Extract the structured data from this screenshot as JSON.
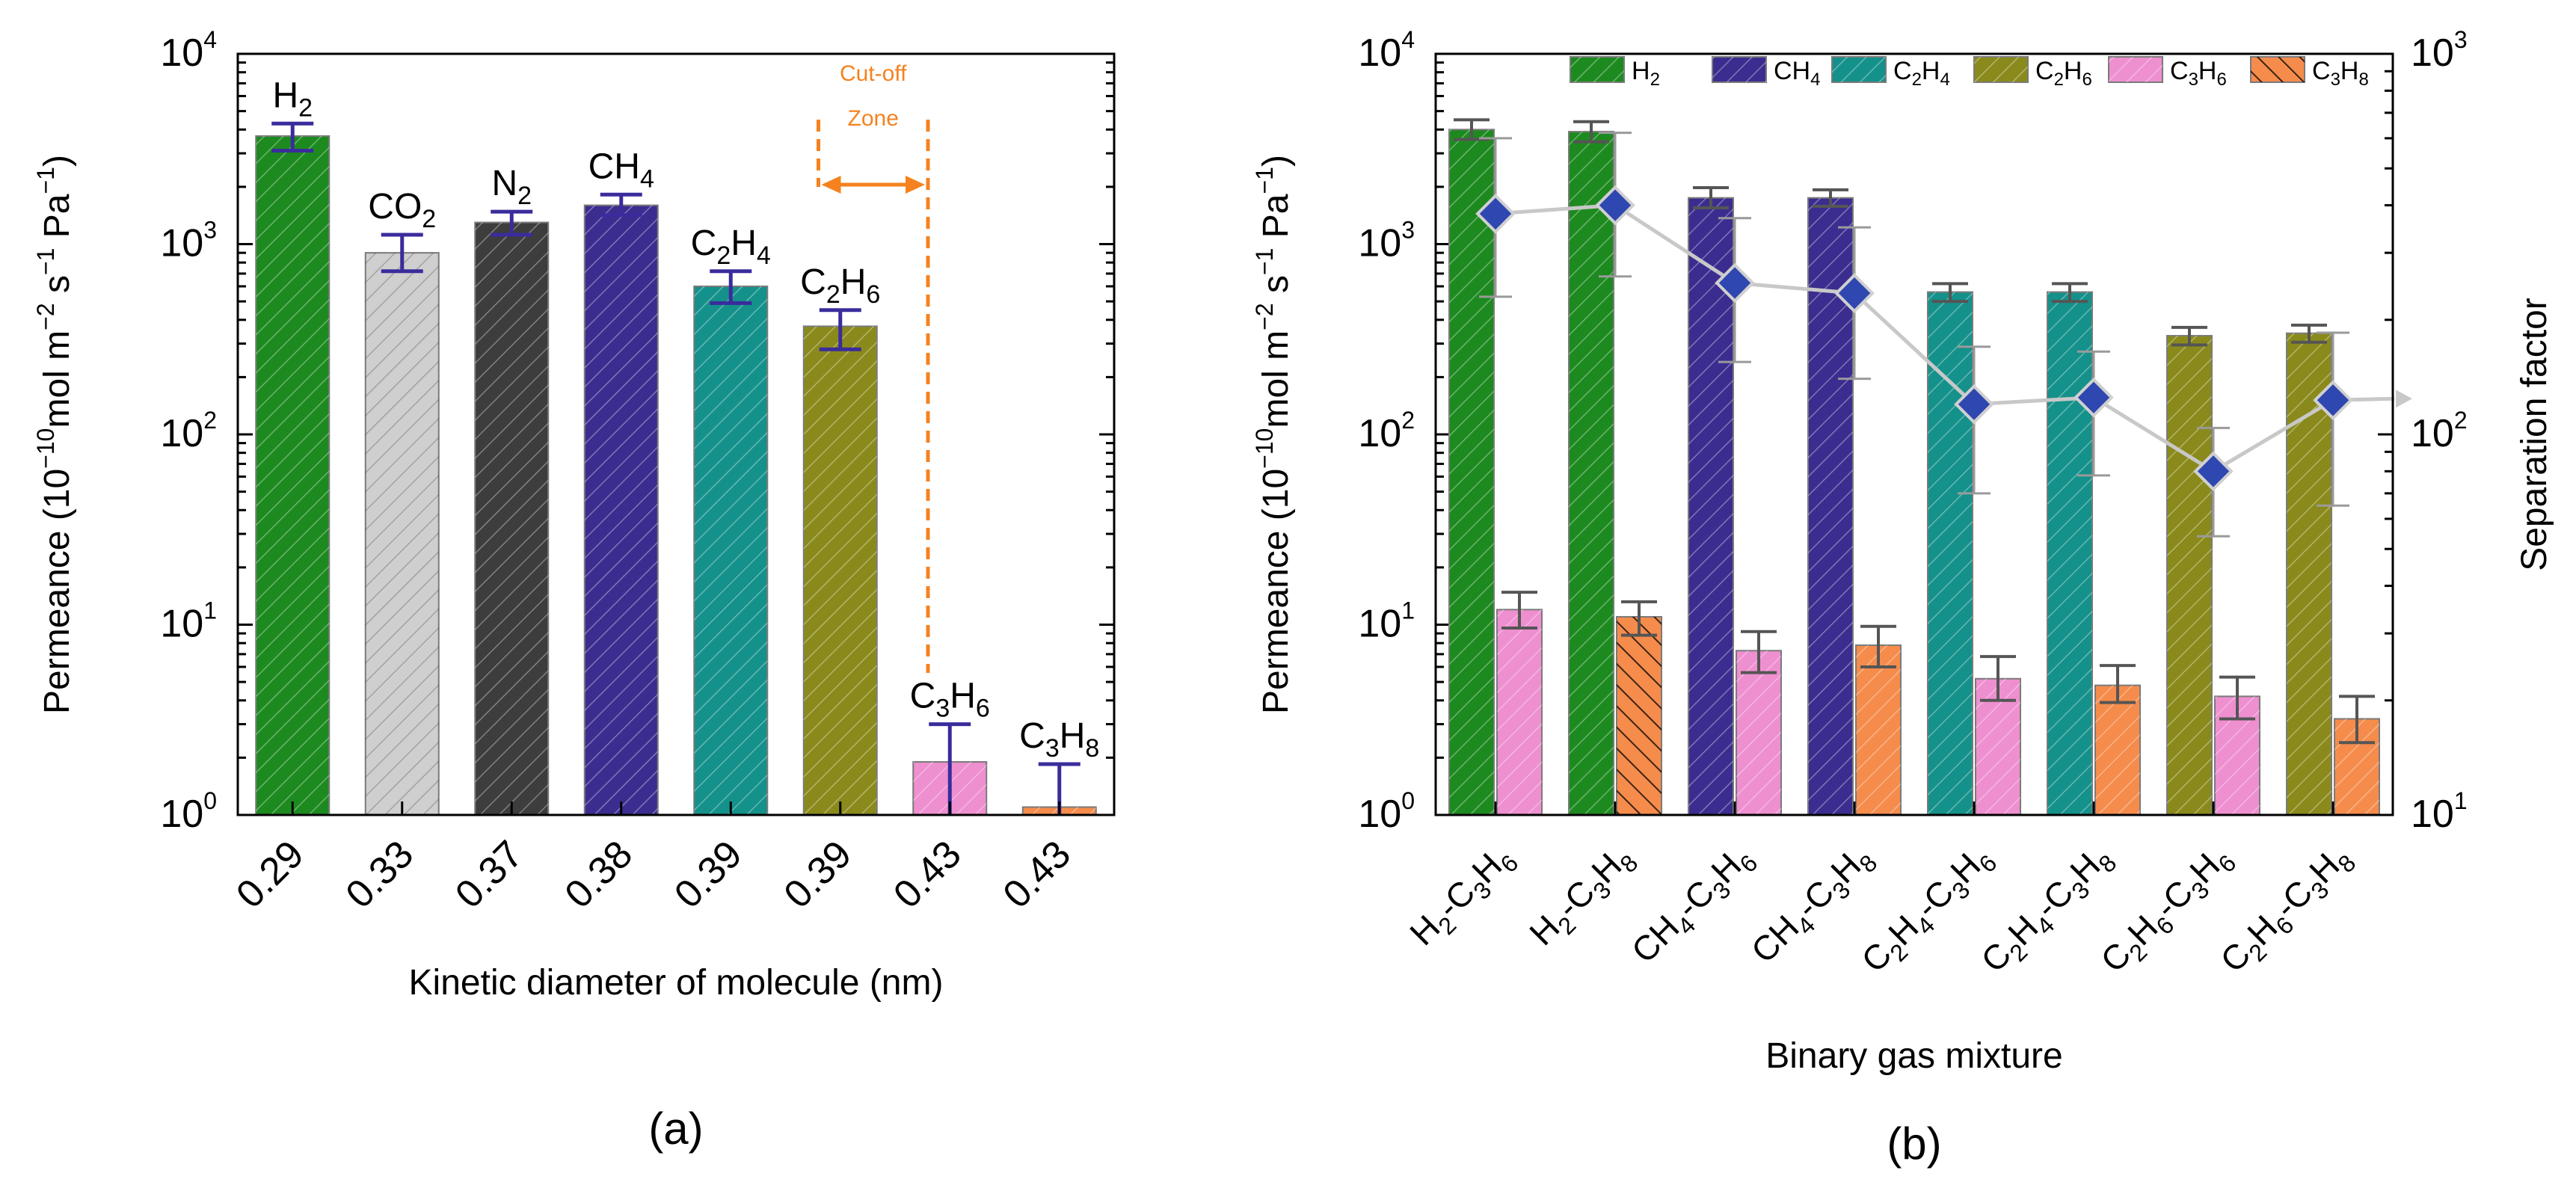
{
  "colors": {
    "H2": "#1d8a1f",
    "CO2": "#cfcfcf",
    "N2": "#3d3d3d",
    "CH4": "#3b2d8f",
    "C2H4": "#14918a",
    "C2H6": "#8a8a1c",
    "C3H6": "#ee8fd0",
    "C3H8": "#f58c4c",
    "errbar_a": "#3a2c9c",
    "errbar_b": "#555555",
    "cutoff": "#f5821f",
    "sep_marker": "#2f47b0",
    "sep_line": "#c8c8c8"
  },
  "chart_data": [
    {
      "type": "bar",
      "panel_label": "(a)",
      "yscale": "log",
      "ylim": [
        1,
        10000
      ],
      "yticks": [
        {
          "base": "10",
          "exp": "0"
        },
        {
          "base": "10",
          "exp": "1"
        },
        {
          "base": "10",
          "exp": "2"
        },
        {
          "base": "10",
          "exp": "3"
        },
        {
          "base": "10",
          "exp": "4"
        }
      ],
      "ylabel": {
        "main": "Permeance (10",
        "e1": "−10",
        "m2": "mol m",
        "e2": "−2",
        "m3": " s",
        "e3": "−1",
        "m4": " Pa",
        "e4": "−1",
        "end": ")"
      },
      "xlabel": "Kinetic diameter of molecule (nm)",
      "cutoff": {
        "label1": "Cut-off",
        "label2": "Zone"
      },
      "bars": [
        {
          "tick": "0.29",
          "value": 3700,
          "err_low": 3100,
          "err_high": 4300,
          "color_key": "H2",
          "label": [
            {
              "t": "H"
            },
            {
              "t": "2",
              "s": 1
            }
          ]
        },
        {
          "tick": "0.33",
          "value": 900,
          "err_low": 720,
          "err_high": 1120,
          "color_key": "CO2",
          "label": [
            {
              "t": "CO"
            },
            {
              "t": "2",
              "s": 1
            }
          ]
        },
        {
          "tick": "0.37",
          "value": 1300,
          "err_low": 1120,
          "err_high": 1480,
          "color_key": "N2",
          "label": [
            {
              "t": "N"
            },
            {
              "t": "2",
              "s": 1
            }
          ]
        },
        {
          "tick": "0.38",
          "value": 1600,
          "err_low": 1420,
          "err_high": 1820,
          "color_key": "CH4",
          "label": [
            {
              "t": "CH"
            },
            {
              "t": "4",
              "s": 1
            }
          ]
        },
        {
          "tick": "0.39",
          "value": 600,
          "err_low": 490,
          "err_high": 720,
          "color_key": "C2H4",
          "label": [
            {
              "t": "C"
            },
            {
              "t": "2",
              "s": 1
            },
            {
              "t": "H"
            },
            {
              "t": "4",
              "s": 1
            }
          ]
        },
        {
          "tick": "0.39",
          "value": 370,
          "err_low": 280,
          "err_high": 450,
          "color_key": "C2H6",
          "label": [
            {
              "t": "C"
            },
            {
              "t": "2",
              "s": 1
            },
            {
              "t": "H"
            },
            {
              "t": "6",
              "s": 1
            }
          ]
        },
        {
          "tick": "0.43",
          "value": 1.9,
          "err_low": 1.0,
          "err_high": 3.0,
          "color_key": "C3H6",
          "label": [
            {
              "t": "C"
            },
            {
              "t": "3",
              "s": 1
            },
            {
              "t": "H"
            },
            {
              "t": "6",
              "s": 1
            }
          ]
        },
        {
          "tick": "0.43",
          "value": 1.1,
          "err_low": 1.0,
          "err_high": 1.85,
          "color_key": "C3H8",
          "label": [
            {
              "t": "C"
            },
            {
              "t": "3",
              "s": 1
            },
            {
              "t": "H"
            },
            {
              "t": "8",
              "s": 1
            }
          ]
        }
      ]
    },
    {
      "type": "bar",
      "panel_label": "(b)",
      "yscale": "log",
      "ylim": [
        1,
        10000
      ],
      "y2lim": [
        10,
        1000
      ],
      "yticks": [
        {
          "base": "10",
          "exp": "0"
        },
        {
          "base": "10",
          "exp": "1"
        },
        {
          "base": "10",
          "exp": "2"
        },
        {
          "base": "10",
          "exp": "3"
        },
        {
          "base": "10",
          "exp": "4"
        }
      ],
      "y2ticks": [
        {
          "base": "10",
          "exp": "1"
        },
        {
          "base": "10",
          "exp": "2"
        },
        {
          "base": "10",
          "exp": "3"
        }
      ],
      "ylabel": {
        "main": "Permeance (10",
        "e1": "−10",
        "m2": "mol m",
        "e2": "−2",
        "m3": " s",
        "e3": "−1",
        "m4": " Pa",
        "e4": "−1",
        "end": ")"
      },
      "y2label": "Separation factor",
      "xlabel": "Binary gas mixture",
      "legend": [
        {
          "key": "H2",
          "label": [
            {
              "t": "H"
            },
            {
              "t": "2",
              "s": 1
            }
          ]
        },
        {
          "key": "CH4",
          "label": [
            {
              "t": "CH"
            },
            {
              "t": "4",
              "s": 1
            }
          ]
        },
        {
          "key": "C2H4",
          "label": [
            {
              "t": "C"
            },
            {
              "t": "2",
              "s": 1
            },
            {
              "t": "H"
            },
            {
              "t": "4",
              "s": 1
            }
          ]
        },
        {
          "key": "C2H6",
          "label": [
            {
              "t": "C"
            },
            {
              "t": "2",
              "s": 1
            },
            {
              "t": "H"
            },
            {
              "t": "6",
              "s": 1
            }
          ]
        },
        {
          "key": "C3H6",
          "label": [
            {
              "t": "C"
            },
            {
              "t": "3",
              "s": 1
            },
            {
              "t": "H"
            },
            {
              "t": "6",
              "s": 1
            }
          ]
        },
        {
          "key": "C3H8",
          "label": [
            {
              "t": "C"
            },
            {
              "t": "3",
              "s": 1
            },
            {
              "t": "H"
            },
            {
              "t": "8",
              "s": 1
            }
          ]
        }
      ],
      "groups": [
        {
          "tick": [
            {
              "t": "H"
            },
            {
              "t": "2",
              "s": 1
            },
            {
              "t": "-C"
            },
            {
              "t": "3",
              "s": 1
            },
            {
              "t": "H"
            },
            {
              "t": "6",
              "s": 1
            }
          ],
          "first": {
            "key": "H2",
            "value": 4000,
            "err_low": 3550,
            "err_high": 4500
          },
          "second": {
            "key": "C3H6",
            "value": 12,
            "err_low": 9.6,
            "err_high": 14.8
          },
          "sep": 380,
          "sep_low": 230,
          "sep_high": 600
        },
        {
          "tick": [
            {
              "t": "H"
            },
            {
              "t": "2",
              "s": 1
            },
            {
              "t": "-C"
            },
            {
              "t": "3",
              "s": 1
            },
            {
              "t": "H"
            },
            {
              "t": "8",
              "s": 1
            }
          ],
          "first": {
            "key": "H2",
            "value": 3900,
            "err_low": 3450,
            "err_high": 4400
          },
          "second": {
            "key": "C3H8",
            "value": 11,
            "err_low": 8.8,
            "err_high": 13.2
          },
          "sep": 400,
          "sep_low": 260,
          "sep_high": 620
        },
        {
          "tick": [
            {
              "t": "CH"
            },
            {
              "t": "4",
              "s": 1
            },
            {
              "t": "-C"
            },
            {
              "t": "3",
              "s": 1
            },
            {
              "t": "H"
            },
            {
              "t": "6",
              "s": 1
            }
          ],
          "first": {
            "key": "CH4",
            "value": 1750,
            "err_low": 1550,
            "err_high": 1980
          },
          "second": {
            "key": "C3H6",
            "value": 7.3,
            "err_low": 5.6,
            "err_high": 9.2
          },
          "sep": 250,
          "sep_low": 155,
          "sep_high": 370
        },
        {
          "tick": [
            {
              "t": "CH"
            },
            {
              "t": "4",
              "s": 1
            },
            {
              "t": "-C"
            },
            {
              "t": "3",
              "s": 1
            },
            {
              "t": "H"
            },
            {
              "t": "8",
              "s": 1
            }
          ],
          "first": {
            "key": "CH4",
            "value": 1750,
            "err_low": 1580,
            "err_high": 1930
          },
          "second": {
            "key": "C3H8",
            "value": 7.8,
            "err_low": 6.0,
            "err_high": 9.8
          },
          "sep": 235,
          "sep_low": 140,
          "sep_high": 350
        },
        {
          "tick": [
            {
              "t": "C"
            },
            {
              "t": "2",
              "s": 1
            },
            {
              "t": "H"
            },
            {
              "t": "4",
              "s": 1
            },
            {
              "t": "-C"
            },
            {
              "t": "3",
              "s": 1
            },
            {
              "t": "H"
            },
            {
              "t": "6",
              "s": 1
            }
          ],
          "first": {
            "key": "C2H4",
            "value": 560,
            "err_low": 500,
            "err_high": 620
          },
          "second": {
            "key": "C3H6",
            "value": 5.2,
            "err_low": 4.0,
            "err_high": 6.8
          },
          "sep": 120,
          "sep_low": 70,
          "sep_high": 170
        },
        {
          "tick": [
            {
              "t": "C"
            },
            {
              "t": "2",
              "s": 1
            },
            {
              "t": "H"
            },
            {
              "t": "4",
              "s": 1
            },
            {
              "t": "-C"
            },
            {
              "t": "3",
              "s": 1
            },
            {
              "t": "H"
            },
            {
              "t": "8",
              "s": 1
            }
          ],
          "first": {
            "key": "C2H4",
            "value": 560,
            "err_low": 500,
            "err_high": 620
          },
          "second": {
            "key": "C3H8",
            "value": 4.8,
            "err_low": 3.9,
            "err_high": 6.1
          },
          "sep": 125,
          "sep_low": 78,
          "sep_high": 165
        },
        {
          "tick": [
            {
              "t": "C"
            },
            {
              "t": "2",
              "s": 1
            },
            {
              "t": "H"
            },
            {
              "t": "6",
              "s": 1
            },
            {
              "t": "-C"
            },
            {
              "t": "3",
              "s": 1
            },
            {
              "t": "H"
            },
            {
              "t": "6",
              "s": 1
            }
          ],
          "first": {
            "key": "C2H6",
            "value": 330,
            "err_low": 295,
            "err_high": 365
          },
          "second": {
            "key": "C3H6",
            "value": 4.2,
            "err_low": 3.2,
            "err_high": 5.3
          },
          "sep": 80,
          "sep_low": 54,
          "sep_high": 104
        },
        {
          "tick": [
            {
              "t": "C"
            },
            {
              "t": "2",
              "s": 1
            },
            {
              "t": "H"
            },
            {
              "t": "6",
              "s": 1
            },
            {
              "t": "-C"
            },
            {
              "t": "3",
              "s": 1
            },
            {
              "t": "H"
            },
            {
              "t": "8",
              "s": 1
            }
          ],
          "first": {
            "key": "C2H6",
            "value": 340,
            "err_low": 305,
            "err_high": 375
          },
          "second": {
            "key": "C3H8",
            "value": 3.2,
            "err_low": 2.4,
            "err_high": 4.2
          },
          "sep": 123,
          "sep_low": 65,
          "sep_high": 185
        }
      ]
    }
  ]
}
